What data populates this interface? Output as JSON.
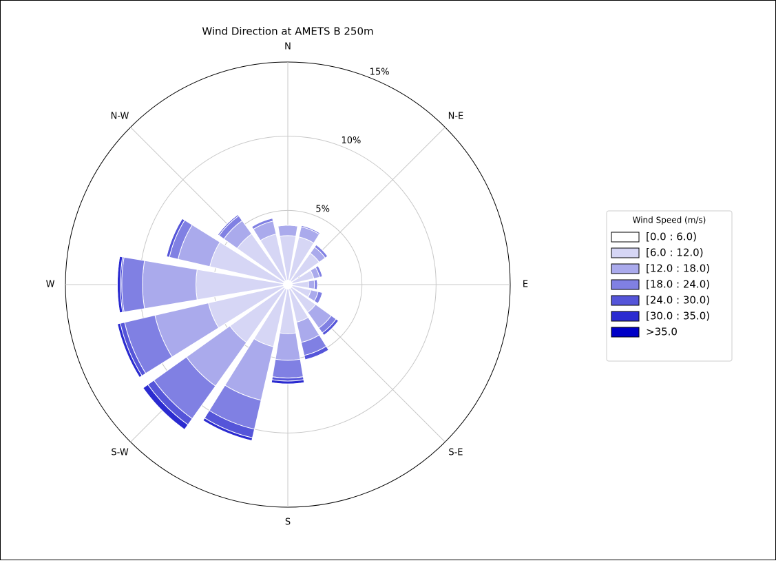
{
  "chart_data": {
    "type": "windrose",
    "title": "Wind Direction at AMETS B 250m",
    "x": [
      0,
      22.5,
      45,
      67.5,
      90,
      112.5,
      135,
      157.5,
      180,
      202.5,
      225,
      247.5,
      270,
      292.5,
      315,
      337.5
    ],
    "xlim": [
      0,
      360
    ],
    "xticks": [
      {
        "value": 0,
        "label": "N"
      },
      {
        "value": 45,
        "label": "N-E"
      },
      {
        "value": 90,
        "label": "E"
      },
      {
        "value": 135,
        "label": "S-E"
      },
      {
        "value": 180,
        "label": "S"
      },
      {
        "value": 225,
        "label": "S-W"
      },
      {
        "value": 270,
        "label": "W"
      },
      {
        "value": 315,
        "label": "N-W"
      }
    ],
    "ylim": [
      0,
      15
    ],
    "yticks": [
      {
        "value": 0,
        "label": "0%"
      },
      {
        "value": 5,
        "label": "5%"
      },
      {
        "value": 10,
        "label": "10%"
      },
      {
        "value": 15,
        "label": "15%"
      }
    ],
    "grid": true,
    "legend_title": "Wind Speed (m/s)",
    "legend_position": "right",
    "series": [
      {
        "name": "[0.0 : 6.0)",
        "color": "#ffffff",
        "values": [
          0.3,
          0.3,
          0.3,
          0.3,
          0.3,
          0.3,
          0.3,
          0.3,
          0.3,
          0.3,
          0.3,
          0.3,
          0.3,
          0.3,
          0.3,
          0.3
        ]
      },
      {
        "name": "[6.0 : 12.0)",
        "color": "#d6d6f5",
        "values": [
          3.0,
          3.0,
          2.3,
          1.5,
          1.1,
          1.3,
          2.0,
          2.3,
          3.0,
          4.0,
          4.5,
          5.2,
          5.9,
          5.1,
          3.9,
          3.2
        ]
      },
      {
        "name": "[12.0 : 18.0)",
        "color": "#aaaaec",
        "values": [
          0.7,
          0.7,
          0.5,
          0.4,
          0.4,
          0.5,
          1.3,
          1.4,
          1.8,
          3.7,
          3.6,
          3.7,
          3.6,
          2.2,
          1.1,
          0.9
        ]
      },
      {
        "name": "[18.0 : 24.0)",
        "color": "#8080e3",
        "values": [
          0,
          0.1,
          0.2,
          0.2,
          0.2,
          0.3,
          0.4,
          0.9,
          1.2,
          2.0,
          2.7,
          2.1,
          1.4,
          0.6,
          0.4,
          0.2
        ]
      },
      {
        "name": "[24.0 : 30.0)",
        "color": "#5555d9",
        "values": [
          0,
          0,
          0,
          0,
          0,
          0,
          0.2,
          0.3,
          0.2,
          0.6,
          0.5,
          0.3,
          0.1,
          0.2,
          0.1,
          0
        ]
      },
      {
        "name": "[30.0 : 35.0)",
        "color": "#2b2bd0",
        "values": [
          0,
          0,
          0,
          0,
          0,
          0,
          0,
          0,
          0.2,
          0.2,
          0.4,
          0.2,
          0.2,
          0,
          0,
          0
        ]
      },
      {
        "name": ">35.0",
        "color": "#0000c6",
        "values": [
          0,
          0,
          0,
          0,
          0,
          0,
          0,
          0,
          0,
          0,
          0,
          0,
          0,
          0,
          0,
          0
        ]
      }
    ]
  }
}
